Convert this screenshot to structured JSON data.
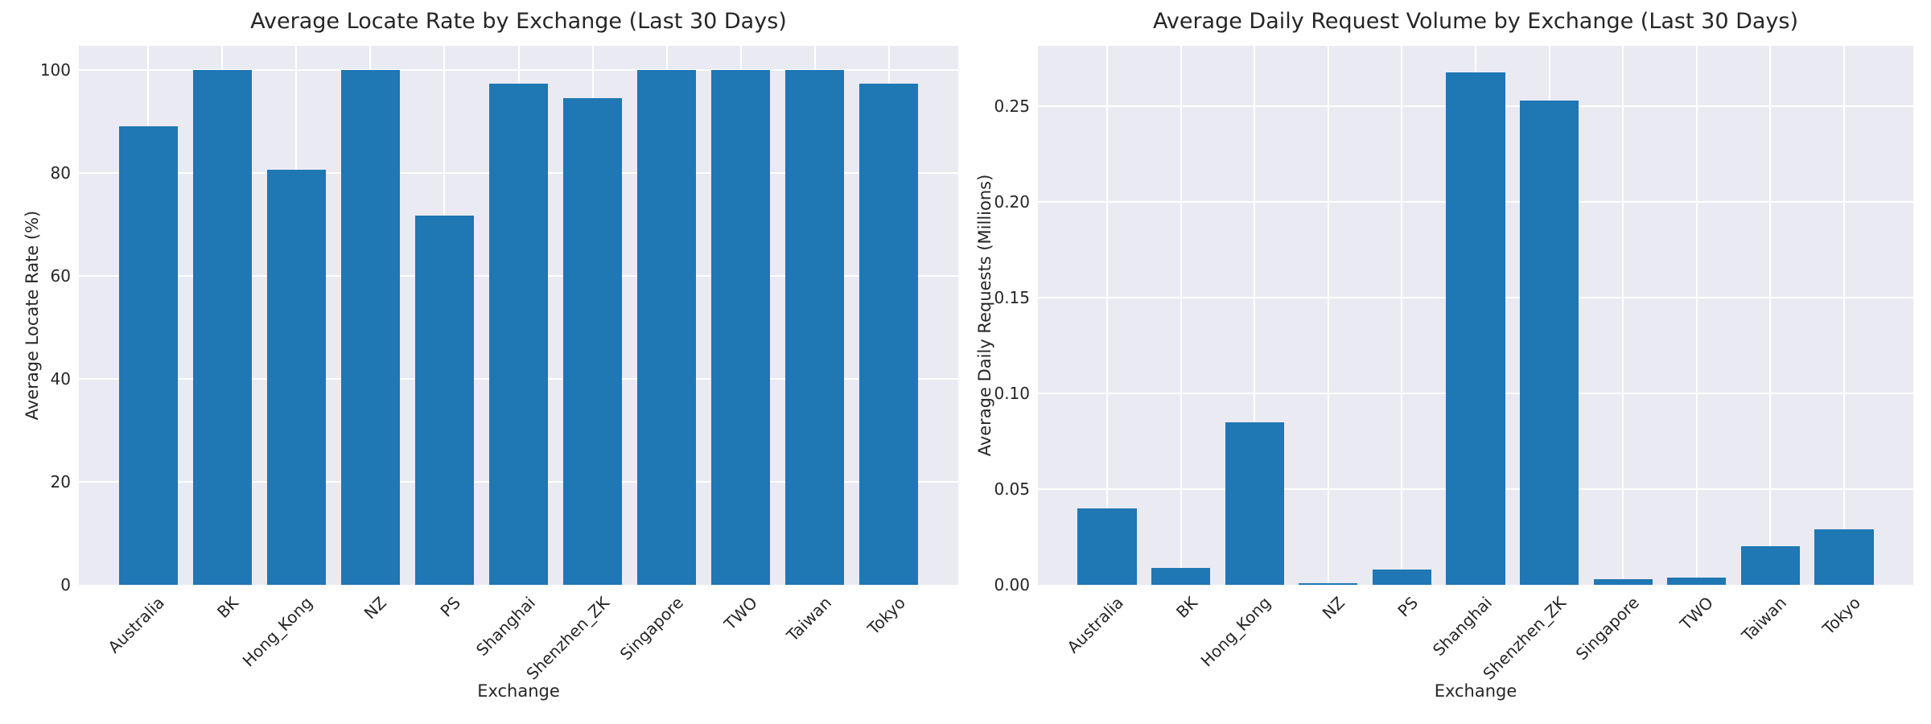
{
  "figure": {
    "plot_background": "#eaeaf2",
    "grid_color": "#ffffff",
    "bar_color": "#1f77b4",
    "text_color": "#262626"
  },
  "chart_data": [
    {
      "type": "bar",
      "title": "Average Locate Rate by Exchange (Last 30 Days)",
      "xlabel": "Exchange",
      "ylabel": "Average Locate Rate (%)",
      "categories": [
        "Australia",
        "BK",
        "Hong_Kong",
        "NZ",
        "PS",
        "Shanghai",
        "Shenzhen_ZK",
        "Singapore",
        "TWO",
        "Taiwan",
        "Tokyo"
      ],
      "values": [
        89.1,
        100,
        80.7,
        100,
        71.7,
        97.4,
        94.6,
        100,
        100,
        100,
        97.3
      ],
      "ylim": [
        0,
        104.7
      ],
      "yticks": [
        0,
        20,
        40,
        60,
        80,
        100
      ],
      "ytick_labels": [
        "0",
        "20",
        "40",
        "60",
        "80",
        "100"
      ],
      "grid": true,
      "legend": false
    },
    {
      "type": "bar",
      "title": "Average Daily Request Volume by Exchange (Last 30 Days)",
      "xlabel": "Exchange",
      "ylabel": "Average Daily Requests (Millions)",
      "categories": [
        "Australia",
        "BK",
        "Hong_Kong",
        "NZ",
        "PS",
        "Shanghai",
        "Shenzhen_ZK",
        "Singapore",
        "TWO",
        "Taiwan",
        "Tokyo"
      ],
      "values": [
        0.04,
        0.009,
        0.085,
        0.001,
        0.008,
        0.268,
        0.253,
        0.003,
        0.004,
        0.02,
        0.029
      ],
      "ylim": [
        0,
        0.2817
      ],
      "yticks": [
        0,
        0.05,
        0.1,
        0.15,
        0.2,
        0.25
      ],
      "ytick_labels": [
        "0.00",
        "0.05",
        "0.10",
        "0.15",
        "0.20",
        "0.25"
      ],
      "grid": true,
      "legend": false
    }
  ]
}
